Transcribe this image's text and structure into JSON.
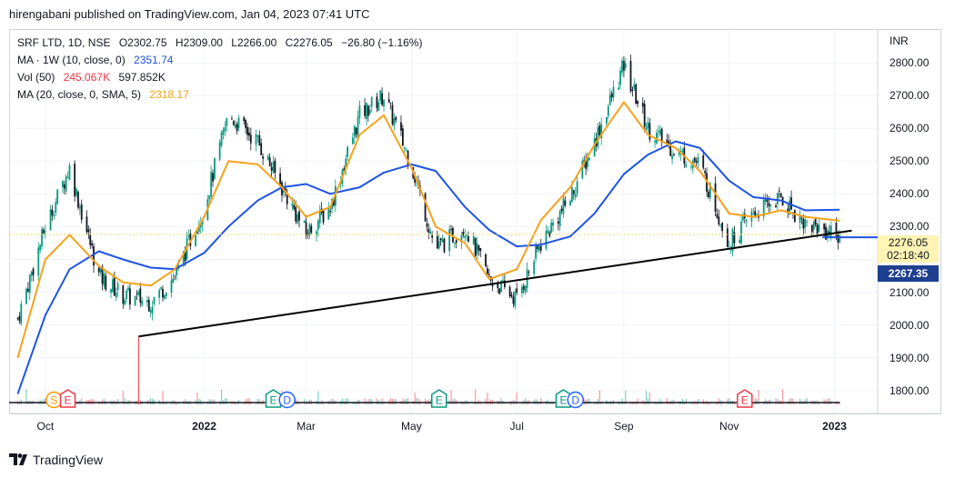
{
  "header": {
    "published": "hirengabani published on TradingView.com, Jan 04, 2023 07:41 UTC"
  },
  "legend": {
    "symbol": "SRF LTD, 1D, NSE",
    "open": "O2302.75",
    "high": "H2309.00",
    "low": "L2266.00",
    "close": "C2276.05",
    "change": "−26.80 (−1.16%)",
    "ma_label": "MA · 1W (10, close, 0)",
    "ma_value": "2351.74",
    "vol_label": "Vol (50)",
    "vol_value1": "245.067K",
    "vol_value2": "597.852K",
    "ma2_label": "MA (20, close, 0, SMA, 5)",
    "ma2_value": "2318.17"
  },
  "price_axis": {
    "unit": "INR",
    "last_price": "2276.05",
    "countdown": "02:18:40",
    "ma_price": "2267.35"
  },
  "event_markers": [
    {
      "label": "S",
      "kind": "split",
      "color": "#ff9800"
    },
    {
      "label": "E",
      "kind": "earnings",
      "color": "#f23645"
    },
    {
      "label": "E",
      "kind": "earnings",
      "color": "#089981"
    },
    {
      "label": "D",
      "kind": "dividend",
      "color": "#2962ff"
    },
    {
      "label": "E",
      "kind": "earnings",
      "color": "#089981"
    },
    {
      "label": "E",
      "kind": "earnings",
      "color": "#089981"
    },
    {
      "label": "D",
      "kind": "dividend",
      "color": "#2962ff"
    },
    {
      "label": "E",
      "kind": "earnings",
      "color": "#f23645"
    }
  ],
  "colors": {
    "up": "#089981",
    "down": "#131722",
    "ma_weekly": "#1e53e5",
    "ma_sma": "#f7a21b",
    "trendline": "#000000",
    "grid": "#f0f3fa"
  },
  "brand": {
    "name": "TradingView"
  },
  "chart_data": {
    "type": "line",
    "title": "",
    "xlabel": "",
    "ylabel": "",
    "ylim": [
      1730,
      2900
    ],
    "y_ticks": [
      "2800.00",
      "2700.00",
      "2600.00",
      "2500.00",
      "2400.00",
      "2300.00",
      "2200.00",
      "2100.00",
      "2000.00",
      "1900.00",
      "1800.00"
    ],
    "x_ticks": [
      {
        "label": "Oct",
        "bold": false
      },
      {
        "label": "2022",
        "bold": true
      },
      {
        "label": "Mar",
        "bold": false
      },
      {
        "label": "May",
        "bold": false
      },
      {
        "label": "Jul",
        "bold": false
      },
      {
        "label": "Sep",
        "bold": false
      },
      {
        "label": "Nov",
        "bold": false
      },
      {
        "label": "2023",
        "bold": true
      }
    ],
    "x": [
      "2021-09-15",
      "2021-10-01",
      "2021-10-15",
      "2021-11-01",
      "2021-11-15",
      "2021-12-01",
      "2021-12-15",
      "2022-01-01",
      "2022-01-15",
      "2022-02-01",
      "2022-02-15",
      "2022-03-01",
      "2022-03-15",
      "2022-04-01",
      "2022-04-15",
      "2022-05-01",
      "2022-05-15",
      "2022-06-01",
      "2022-06-15",
      "2022-07-01",
      "2022-07-15",
      "2022-08-01",
      "2022-08-15",
      "2022-09-01",
      "2022-09-15",
      "2022-10-01",
      "2022-10-15",
      "2022-11-01",
      "2022-11-15",
      "2022-12-01",
      "2022-12-15",
      "2023-01-04"
    ],
    "series": [
      {
        "name": "Close",
        "values": [
          2020,
          2300,
          2480,
          2150,
          2090,
          2070,
          2150,
          2360,
          2640,
          2560,
          2420,
          2280,
          2360,
          2640,
          2700,
          2490,
          2230,
          2300,
          2140,
          2080,
          2250,
          2390,
          2560,
          2790,
          2600,
          2530,
          2490,
          2250,
          2340,
          2390,
          2310,
          2276.05
        ]
      },
      {
        "name": "MA · 1W (10, close, 0)",
        "values": [
          1790,
          2030,
          2170,
          2225,
          2200,
          2175,
          2170,
          2220,
          2300,
          2380,
          2420,
          2430,
          2400,
          2420,
          2465,
          2490,
          2470,
          2360,
          2290,
          2240,
          2245,
          2270,
          2340,
          2460,
          2520,
          2560,
          2540,
          2440,
          2390,
          2380,
          2350,
          2351.74
        ]
      },
      {
        "name": "MA (20, close, 0, SMA, 5)",
        "values": [
          1900,
          2200,
          2275,
          2180,
          2130,
          2120,
          2170,
          2330,
          2500,
          2490,
          2420,
          2330,
          2360,
          2580,
          2640,
          2480,
          2300,
          2250,
          2140,
          2170,
          2320,
          2420,
          2550,
          2680,
          2580,
          2540,
          2470,
          2340,
          2330,
          2350,
          2330,
          2318.17
        ]
      }
    ],
    "trendline": {
      "from": {
        "x": "2021-11-24",
        "y": 1965
      },
      "to": {
        "x": "2023-01-11",
        "y": 2288
      }
    },
    "grid": true,
    "legend_position": "top-left"
  }
}
